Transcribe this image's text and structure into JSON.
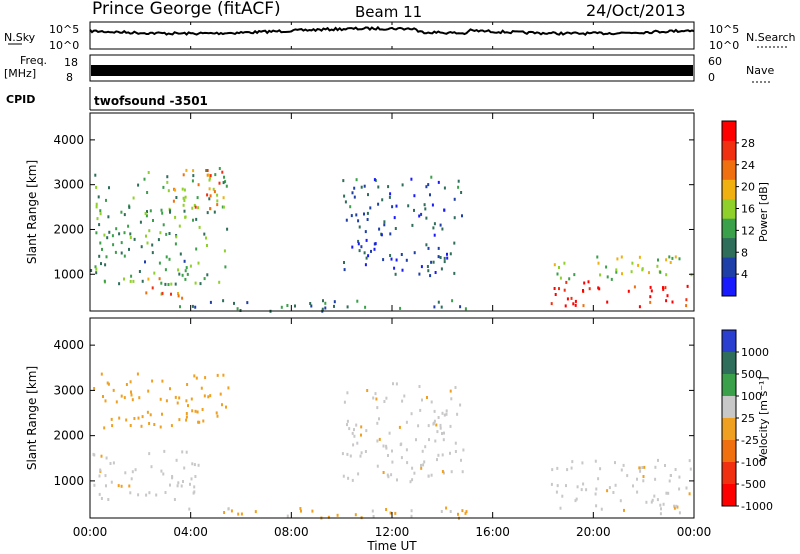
{
  "header": {
    "station": "Prince George (fitACF)",
    "beam": "Beam 11",
    "date": "24/Oct/2013"
  },
  "noise_panel": {
    "left_label": "N.Sky",
    "right_label": "N.Search",
    "tick_top": "10^5",
    "tick_bottom": "10^0"
  },
  "freq_panel": {
    "left_label_1": "Freq.",
    "left_label_2": "[MHz]",
    "tick_top": "18",
    "tick_bottom": "8",
    "right_label": "Nave",
    "rtick_top": "60",
    "rtick_bottom": "0"
  },
  "cpid_panel": {
    "label": "CPID",
    "program": "twofsound -3501"
  },
  "colors": {
    "power_scale": [
      "#1a1aff",
      "#1f3fa8",
      "#2e6e5a",
      "#3aa04a",
      "#8fd02a",
      "#f0b010",
      "#f07010",
      "#f03010",
      "#ff0000"
    ],
    "velocity_scale": [
      "#2a3fd0",
      "#2e6e5a",
      "#3aa04a",
      "#c8c8c8",
      "#f0a020",
      "#f07010",
      "#f03010",
      "#ff0000"
    ],
    "ground_scatter": "#c8c8c8"
  },
  "chart_data": [
    {
      "type": "heatmap",
      "name": "power",
      "ylabel": "Slant Range [km]",
      "yticks": [
        "1000",
        "2000",
        "3000",
        "4000"
      ],
      "ylim": [
        180,
        4600
      ],
      "colorbar_label": "Power [dB]",
      "colorbar_ticks": [
        "4",
        "8",
        "12",
        "16",
        "20",
        "24",
        "28"
      ],
      "colorbar_range": [
        0,
        32
      ],
      "features": [
        {
          "t_start": 18.3,
          "t_end": 23.9,
          "r_start": 300,
          "r_end": 900,
          "value": 28
        },
        {
          "t_start": 18.3,
          "t_end": 23.9,
          "r_start": 900,
          "r_end": 1500,
          "value": 16
        },
        {
          "t_start": 0.0,
          "t_end": 5.5,
          "r_start": 800,
          "r_end": 3400,
          "value": 12
        },
        {
          "t_start": 2.0,
          "t_end": 4.0,
          "r_start": 500,
          "r_end": 1000,
          "value": 22
        },
        {
          "t_start": 3.2,
          "t_end": 5.3,
          "r_start": 2500,
          "r_end": 3400,
          "value": 24
        },
        {
          "t_start": 3.5,
          "t_end": 15.0,
          "r_start": 200,
          "r_end": 450,
          "value": 8
        },
        {
          "t_start": 10.0,
          "t_end": 14.8,
          "r_start": 1000,
          "r_end": 3200,
          "value": 6
        }
      ]
    },
    {
      "type": "heatmap",
      "name": "velocity",
      "ylabel": "Slant Range [km]",
      "yticks": [
        "1000",
        "2000",
        "3000",
        "4000"
      ],
      "ylim": [
        180,
        4600
      ],
      "colorbar_label": "Velocity [m s⁻¹]",
      "colorbar_ticks": [
        "1000",
        "500",
        "100",
        "25",
        "-25",
        "-100",
        "-500",
        "-1000"
      ],
      "colorbar_range": [
        -1200,
        1200
      ],
      "features": [
        {
          "t_start": 18.3,
          "t_end": 23.9,
          "r_start": 300,
          "r_end": 1500,
          "value": 0
        },
        {
          "t_start": 0.0,
          "t_end": 4.5,
          "r_start": 600,
          "r_end": 1700,
          "value": 0
        },
        {
          "t_start": 0.0,
          "t_end": 5.5,
          "r_start": 2200,
          "r_end": 3400,
          "value": -150
        },
        {
          "t_start": 3.5,
          "t_end": 15.0,
          "r_start": 200,
          "r_end": 450,
          "value": -80
        },
        {
          "t_start": 10.0,
          "t_end": 14.8,
          "r_start": 1000,
          "r_end": 3200,
          "value": 0
        }
      ]
    }
  ],
  "x_axis": {
    "xlabel": "Time UT",
    "xlim": [
      0,
      24
    ],
    "ticks": [
      "00:00",
      "04:00",
      "08:00",
      "12:00",
      "16:00",
      "20:00",
      "00:00"
    ]
  }
}
